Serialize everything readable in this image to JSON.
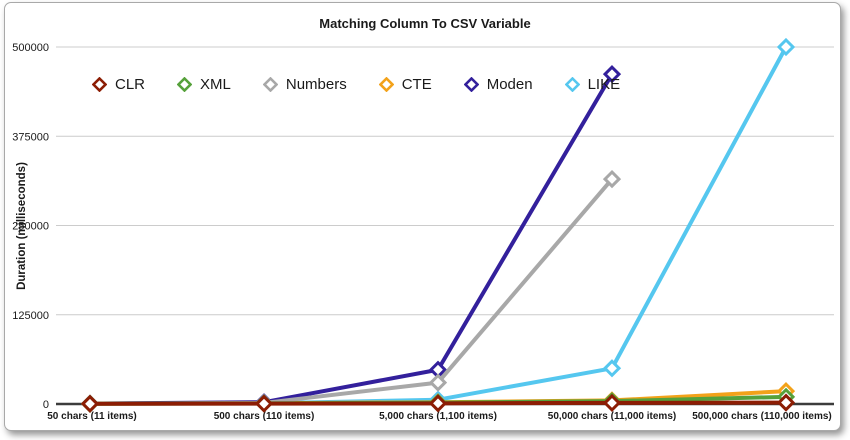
{
  "chart_data": {
    "type": "line",
    "title": "Matching Column To CSV Variable",
    "ylabel": "Duration (milliseconds)",
    "categories": [
      "50 chars (11 items)",
      "500 chars (110 items)",
      "5,000 chars (1,100 items)",
      "50,000 chars (11,000 items)",
      "500,000 chars (110,000 items)"
    ],
    "yticks": [
      0,
      125000,
      250000,
      375000,
      500000
    ],
    "ylim": [
      0,
      500000
    ],
    "grid": true,
    "legend_position": "top-left-inside",
    "series": [
      {
        "name": "CLR",
        "color": "#8C1D04",
        "values": [
          300,
          500,
          900,
          1500,
          2000
        ]
      },
      {
        "name": "XML",
        "color": "#56A13B",
        "values": [
          400,
          800,
          2000,
          4000,
          10000
        ]
      },
      {
        "name": "Numbers",
        "color": "#A8A8A8",
        "values": [
          500,
          1500,
          30000,
          315000,
          null
        ]
      },
      {
        "name": "CTE",
        "color": "#F3A21A",
        "values": [
          400,
          1000,
          2500,
          5000,
          18000
        ]
      },
      {
        "name": "Moden",
        "color": "#33209C",
        "values": [
          600,
          2500,
          48000,
          462000,
          null
        ]
      },
      {
        "name": "LIKE",
        "color": "#55C7EF",
        "values": [
          400,
          900,
          6000,
          50000,
          500000
        ]
      }
    ],
    "colors": {
      "gridline": "#cccccc",
      "axis": "#3c3c3c",
      "text": "#1a1a1a"
    }
  }
}
